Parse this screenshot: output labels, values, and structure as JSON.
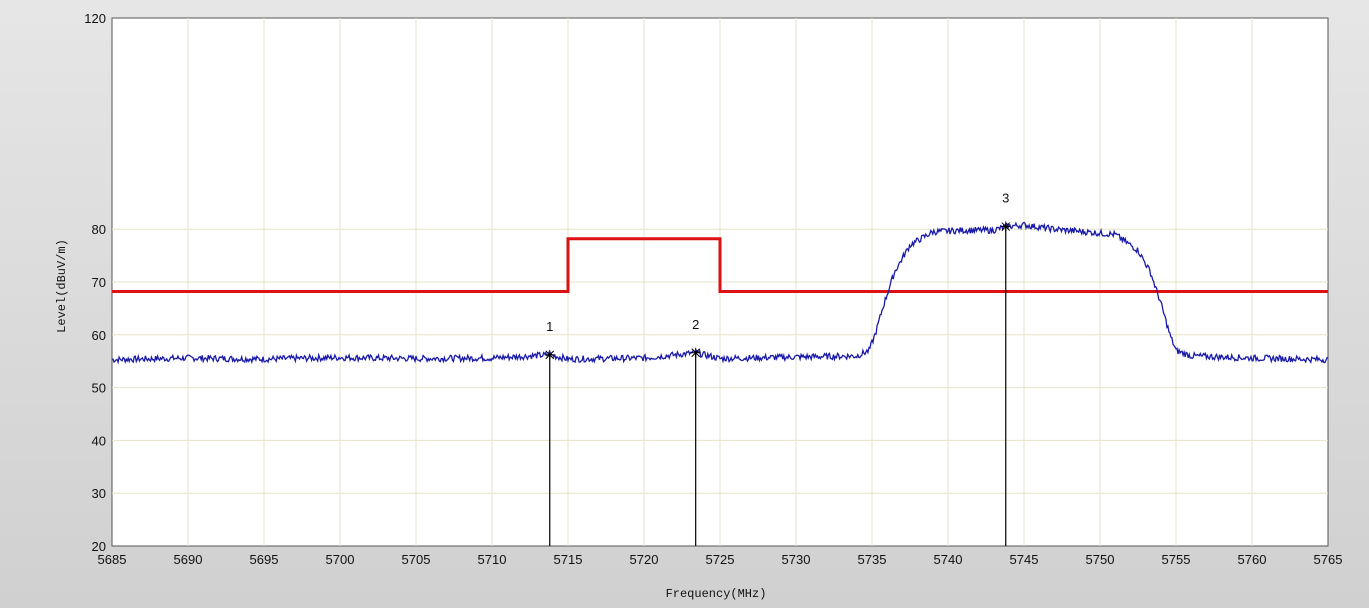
{
  "chart_data": {
    "type": "line",
    "title": "",
    "xlabel": "Frequency(MHz)",
    "ylabel": "Level(dBuV/m)",
    "xlim": [
      5685,
      5765
    ],
    "ylim": [
      20,
      120
    ],
    "x_ticks": [
      5685,
      5690,
      5695,
      5700,
      5705,
      5710,
      5715,
      5720,
      5725,
      5730,
      5735,
      5740,
      5745,
      5750,
      5755,
      5760,
      5765
    ],
    "y_ticks": [
      20,
      30,
      40,
      50,
      60,
      70,
      80,
      120
    ],
    "grid": true,
    "series": [
      {
        "role": "limit",
        "color": "#dd1111",
        "x": [
          5685,
          5715,
          5715,
          5725,
          5725,
          5765
        ],
        "y": [
          68.2,
          68.2,
          78.2,
          78.2,
          68.2,
          68.2
        ]
      },
      {
        "role": "measurement",
        "color": "#1a1aaa",
        "x": [
          5685,
          5690,
          5695,
          5700,
          5705,
          5710,
          5713.8,
          5715,
          5720,
          5723.4,
          5725,
          5730,
          5734,
          5734.8,
          5735.2,
          5735.8,
          5736.5,
          5737.5,
          5739,
          5741,
          5743,
          5743.8,
          5745,
          5747,
          5749,
          5751,
          5752.5,
          5753.3,
          5754,
          5754.6,
          5755,
          5756,
          5760,
          5765
        ],
        "y": [
          55.3,
          55.6,
          55.4,
          55.7,
          55.5,
          55.6,
          56.2,
          55.4,
          55.6,
          56.6,
          55.5,
          55.8,
          56.0,
          57.0,
          60.0,
          66.0,
          72.0,
          77.0,
          79.5,
          79.8,
          79.8,
          80.5,
          80.8,
          80.0,
          79.5,
          79.0,
          76.0,
          72.0,
          66.0,
          60.0,
          57.0,
          56.0,
          55.6,
          55.3
        ]
      }
    ],
    "markers": [
      {
        "label": "1",
        "x": 5713.8,
        "y": 56.2
      },
      {
        "label": "2",
        "x": 5723.4,
        "y": 56.6
      },
      {
        "label": "3",
        "x": 5743.8,
        "y": 80.5
      }
    ]
  }
}
